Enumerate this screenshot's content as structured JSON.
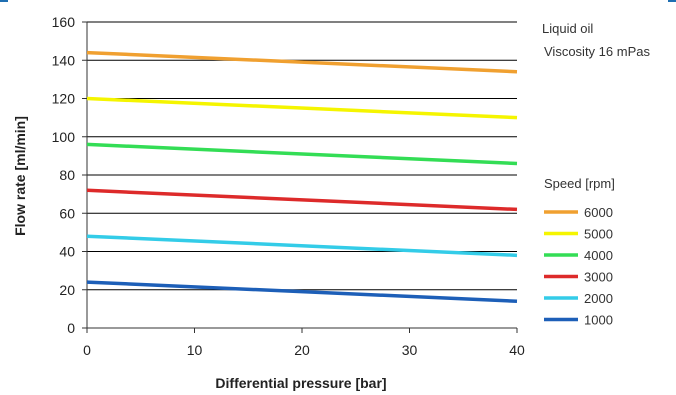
{
  "chart_data": {
    "type": "line",
    "title": "",
    "xlabel": "Differential pressure [bar]",
    "ylabel": "Flow rate [ml/min]",
    "xlim": [
      0,
      40
    ],
    "ylim": [
      0,
      160
    ],
    "xticks": [
      0,
      10,
      20,
      30,
      40
    ],
    "yticks": [
      0,
      20,
      40,
      60,
      80,
      100,
      120,
      140,
      160
    ],
    "grid": "horizontal",
    "annotations": [
      "Liquid oil",
      "Viscosity 16 mPas"
    ],
    "legend_title": "Speed [rpm]",
    "legend_position": "right",
    "x": [
      0,
      40
    ],
    "series": [
      {
        "name": "6000",
        "color": "#f0a030",
        "values": [
          144,
          134
        ]
      },
      {
        "name": "5000",
        "color": "#f5f500",
        "values": [
          120,
          110
        ]
      },
      {
        "name": "4000",
        "color": "#33dd55",
        "values": [
          96,
          86
        ]
      },
      {
        "name": "3000",
        "color": "#dd2a2a",
        "values": [
          72,
          62
        ]
      },
      {
        "name": "2000",
        "color": "#33cce8",
        "values": [
          48,
          38
        ]
      },
      {
        "name": "1000",
        "color": "#1d5fb8",
        "values": [
          24,
          14
        ]
      }
    ]
  },
  "colors": {
    "accent": "#1f6fb2",
    "grid": "#000000",
    "axis": "#333333"
  }
}
